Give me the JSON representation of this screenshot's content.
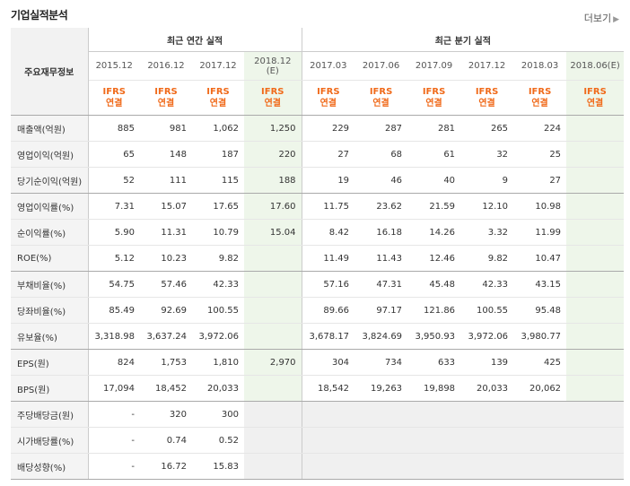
{
  "title": "기업실적분석",
  "more_label": "더보기",
  "corner_label": "주요재무정보",
  "groups": {
    "annual": "최근 연간 실적",
    "quarterly": "최근 분기 실적"
  },
  "periods": [
    "2015.12",
    "2016.12",
    "2017.12",
    "2018.12\n(E)",
    "2017.03",
    "2017.06",
    "2017.09",
    "2017.12",
    "2018.03",
    "2018.06(E)"
  ],
  "ifrs": [
    "IFRS",
    "연결"
  ],
  "rows": [
    {
      "label": "매출액(억원)",
      "v": [
        "885",
        "981",
        "1,062",
        "1,250",
        "229",
        "287",
        "281",
        "265",
        "224",
        ""
      ]
    },
    {
      "label": "영업이익(억원)",
      "v": [
        "65",
        "148",
        "187",
        "220",
        "27",
        "68",
        "61",
        "32",
        "25",
        ""
      ]
    },
    {
      "label": "당기순이익(억원)",
      "v": [
        "52",
        "111",
        "115",
        "188",
        "19",
        "46",
        "40",
        "9",
        "27",
        ""
      ]
    },
    {
      "label": "영업이익률(%)",
      "v": [
        "7.31",
        "15.07",
        "17.65",
        "17.60",
        "11.75",
        "23.62",
        "21.59",
        "12.10",
        "10.98",
        ""
      ]
    },
    {
      "label": "순이익률(%)",
      "v": [
        "5.90",
        "11.31",
        "10.79",
        "15.04",
        "8.42",
        "16.18",
        "14.26",
        "3.32",
        "11.99",
        ""
      ]
    },
    {
      "label": "ROE(%)",
      "v": [
        "5.12",
        "10.23",
        "9.82",
        "",
        "11.49",
        "11.43",
        "12.46",
        "9.82",
        "10.47",
        ""
      ]
    },
    {
      "label": "부채비율(%)",
      "v": [
        "54.75",
        "57.46",
        "42.33",
        "",
        "57.16",
        "47.31",
        "45.48",
        "42.33",
        "43.15",
        ""
      ]
    },
    {
      "label": "당좌비율(%)",
      "v": [
        "85.49",
        "92.69",
        "100.55",
        "",
        "89.66",
        "97.17",
        "121.86",
        "100.55",
        "95.48",
        ""
      ]
    },
    {
      "label": "유보율(%)",
      "v": [
        "3,318.98",
        "3,637.24",
        "3,972.06",
        "",
        "3,678.17",
        "3,824.69",
        "3,950.93",
        "3,972.06",
        "3,980.77",
        ""
      ]
    },
    {
      "label": "EPS(원)",
      "v": [
        "824",
        "1,753",
        "1,810",
        "2,970",
        "304",
        "734",
        "633",
        "139",
        "425",
        ""
      ]
    },
    {
      "label": "BPS(원)",
      "v": [
        "17,094",
        "18,452",
        "20,033",
        "",
        "18,542",
        "19,263",
        "19,898",
        "20,033",
        "20,062",
        ""
      ]
    },
    {
      "label": "주당배당금(원)",
      "v": [
        "-",
        "320",
        "300",
        "",
        "",
        "",
        "",
        "",
        "",
        ""
      ]
    },
    {
      "label": "시가배당률(%)",
      "v": [
        "-",
        "0.74",
        "0.52",
        "",
        "",
        "",
        "",
        "",
        "",
        ""
      ]
    },
    {
      "label": "배당성향(%)",
      "v": [
        "-",
        "16.72",
        "15.83",
        "",
        "",
        "",
        "",
        "",
        "",
        ""
      ]
    }
  ]
}
